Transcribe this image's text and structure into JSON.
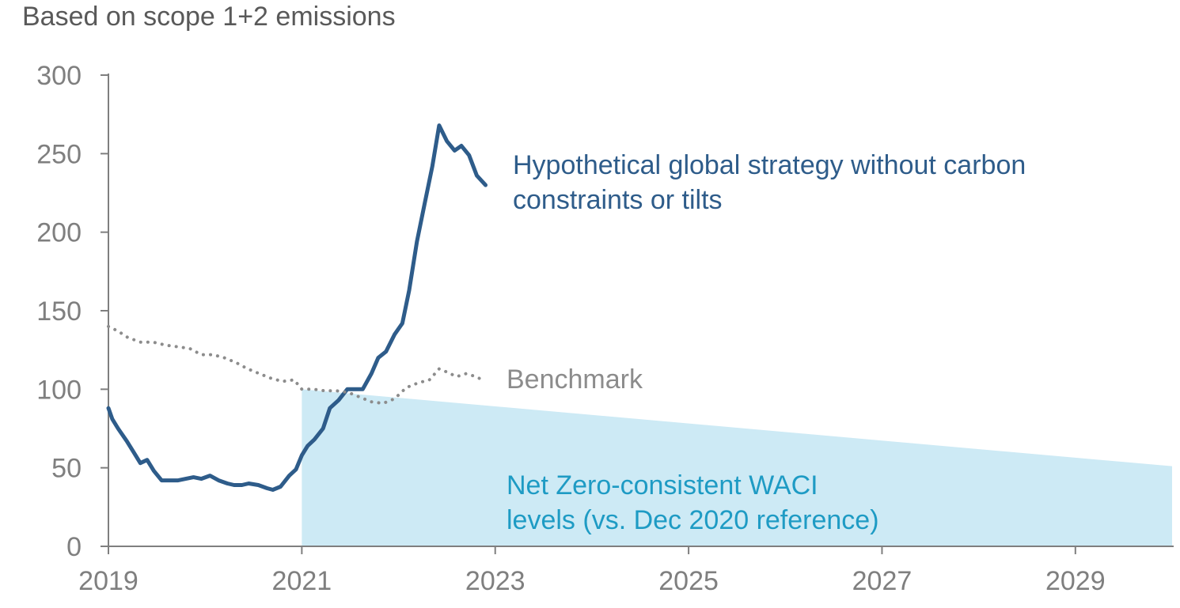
{
  "chart_data": {
    "type": "line",
    "title": "",
    "subtitle": "Based on scope 1+2 emissions",
    "xlabel": "",
    "ylabel": "",
    "xlim": [
      2019.0,
      2030.0
    ],
    "ylim": [
      0,
      300
    ],
    "y_ticks": [
      0,
      50,
      100,
      150,
      200,
      250,
      300
    ],
    "x_ticks": [
      2019,
      2021,
      2023,
      2025,
      2027,
      2029
    ],
    "x_tick_labels": [
      "2019",
      "2021",
      "2023",
      "2025",
      "2027",
      "2029"
    ],
    "y_tick_labels": [
      "0",
      "50",
      "100",
      "150",
      "200",
      "250",
      "300"
    ],
    "grid": false,
    "colors": {
      "strategy": "#2e5c8a",
      "benchmark": "#8c8c8c",
      "netzero_fill": "#cdeaf5",
      "netzero_text": "#1e9bc4",
      "axis": "#7f7f7f",
      "subtitle": "#595959"
    },
    "series": [
      {
        "name": "Hypothetical global strategy without carbon constraints or tilts",
        "label_lines": [
          "Hypothetical global strategy without carbon",
          "constraints or tilts"
        ],
        "style": "solid",
        "x": [
          2019.0,
          2019.04,
          2019.1,
          2019.19,
          2019.26,
          2019.33,
          2019.4,
          2019.47,
          2019.55,
          2019.63,
          2019.72,
          2019.8,
          2019.88,
          2019.96,
          2020.05,
          2020.14,
          2020.23,
          2020.3,
          2020.38,
          2020.45,
          2020.55,
          2020.64,
          2020.7,
          2020.78,
          2020.87,
          2020.94,
          2021.0,
          2021.06,
          2021.13,
          2021.22,
          2021.29,
          2021.38,
          2021.47,
          2021.55,
          2021.63,
          2021.72,
          2021.79,
          2021.87,
          2021.96,
          2022.04,
          2022.11,
          2022.19,
          2022.27,
          2022.35,
          2022.42,
          2022.5,
          2022.58,
          2022.65,
          2022.73,
          2022.81,
          2022.9
        ],
        "y": [
          88,
          81,
          75,
          67,
          60,
          53,
          55,
          48,
          42,
          42,
          42,
          43,
          44,
          43,
          45,
          42,
          40,
          39,
          39,
          40,
          39,
          37,
          36,
          38,
          45,
          49,
          58,
          64,
          68,
          75,
          88,
          93,
          100,
          100,
          100,
          110,
          120,
          124,
          135,
          142,
          163,
          194,
          218,
          242,
          268,
          258,
          252,
          255,
          249,
          236,
          230
        ]
      },
      {
        "name": "Benchmark",
        "label_lines": [
          "Benchmark"
        ],
        "style": "dotted",
        "x": [
          2019.0,
          2019.1,
          2019.2,
          2019.33,
          2019.46,
          2019.6,
          2019.72,
          2019.84,
          2019.96,
          2020.08,
          2020.2,
          2020.32,
          2020.44,
          2020.56,
          2020.68,
          2020.8,
          2020.92,
          2021.0,
          2021.12,
          2021.24,
          2021.36,
          2021.48,
          2021.6,
          2021.72,
          2021.84,
          2021.96,
          2022.08,
          2022.2,
          2022.32,
          2022.42,
          2022.5,
          2022.6,
          2022.7,
          2022.8,
          2022.9
        ],
        "y": [
          140,
          137,
          133,
          130,
          130,
          128,
          127,
          126,
          122,
          122,
          120,
          117,
          113,
          110,
          107,
          105,
          106,
          100,
          100,
          99,
          99,
          98,
          95,
          92,
          91,
          94,
          101,
          104,
          106,
          113,
          111,
          108,
          110,
          108,
          105
        ]
      }
    ],
    "area": {
      "name": "Net Zero-consistent WACI levels (vs. Dec 2020 reference)",
      "label_lines": [
        "Net Zero-consistent WACI",
        "levels (vs. Dec 2020 reference)"
      ],
      "x": [
        2021.0,
        2030.0
      ],
      "y": [
        100,
        51
      ]
    }
  }
}
